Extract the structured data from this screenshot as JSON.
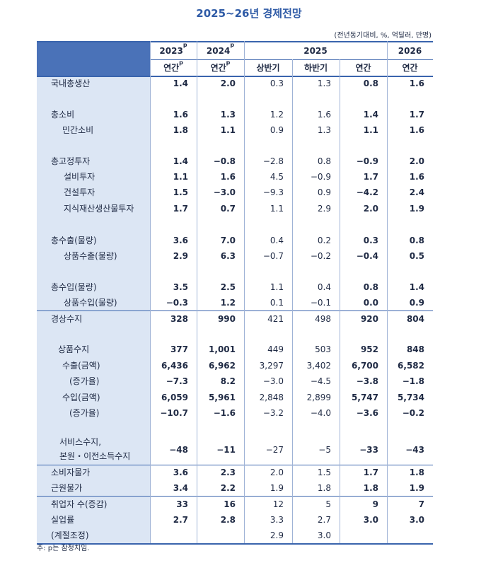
{
  "title": "2025~26년 경제전망",
  "unit_note": "(전년동기대비, %, 억달러, 만명)",
  "header": {
    "row1": [
      {
        "text": "2023",
        "sup": "p"
      },
      {
        "text": "2024",
        "sup": "p"
      },
      {
        "text": "2025"
      },
      {
        "text": "2026"
      }
    ],
    "row2": [
      {
        "text": "연간",
        "sup": "p"
      },
      {
        "text": "연간",
        "sup": "p"
      },
      {
        "text": "상반기"
      },
      {
        "text": "하반기"
      },
      {
        "text": "연간"
      },
      {
        "text": "연간"
      }
    ]
  },
  "table": {
    "rows": [
      {
        "label": "국내총생산",
        "cells": [
          "1.4",
          "2.0",
          "0.3",
          "1.3",
          "0.8",
          "1.6"
        ]
      },
      {
        "label": "총소비",
        "cells": [
          "1.6",
          "1.3",
          "1.2",
          "1.6",
          "1.4",
          "1.7"
        ]
      },
      {
        "label": "민간소비",
        "cells": [
          "1.8",
          "1.1",
          "0.9",
          "1.3",
          "1.1",
          "1.6"
        ]
      },
      {
        "label": "총고정투자",
        "cells": [
          "1.4",
          "−0.8",
          "−2.8",
          "0.8",
          "−0.9",
          "2.0"
        ]
      },
      {
        "label": "설비투자",
        "cells": [
          "1.1",
          "1.6",
          "4.5",
          "−0.9",
          "1.7",
          "1.6"
        ]
      },
      {
        "label": "건설투자",
        "cells": [
          "1.5",
          "−3.0",
          "−9.3",
          "0.9",
          "−4.2",
          "2.4"
        ]
      },
      {
        "label": "지식재산생산물투자",
        "cells": [
          "1.7",
          "0.7",
          "1.1",
          "2.9",
          "2.0",
          "1.9"
        ]
      },
      {
        "label": "총수출(물량)",
        "cells": [
          "3.6",
          "7.0",
          "0.4",
          "0.2",
          "0.3",
          "0.8"
        ]
      },
      {
        "label": "상품수출(물량)",
        "cells": [
          "2.9",
          "6.3",
          "−0.7",
          "−0.2",
          "−0.4",
          "0.5"
        ]
      },
      {
        "label": "총수입(물량)",
        "cells": [
          "3.5",
          "2.5",
          "1.1",
          "0.4",
          "0.8",
          "1.4"
        ]
      },
      {
        "label": "상품수입(물량)",
        "cells": [
          "−0.3",
          "1.2",
          "0.1",
          "−0.1",
          "0.0",
          "0.9"
        ]
      },
      {
        "label": "경상수지",
        "cells": [
          "328",
          "990",
          "421",
          "498",
          "920",
          "804"
        ]
      },
      {
        "label": "상품수지",
        "cells": [
          "377",
          "1,001",
          "449",
          "503",
          "952",
          "848"
        ]
      },
      {
        "label": "수출(금액)",
        "cells": [
          "6,436",
          "6,962",
          "3,297",
          "3,402",
          "6,700",
          "6,582"
        ]
      },
      {
        "label": "(증가율)",
        "cells": [
          "−7.3",
          "8.2",
          "−3.0",
          "−4.5",
          "−3.8",
          "−1.8"
        ]
      },
      {
        "label": "수입(금액)",
        "cells": [
          "6,059",
          "5,961",
          "2,848",
          "2,899",
          "5,747",
          "5,734"
        ]
      },
      {
        "label": "(증가율)",
        "cells": [
          "−10.7",
          "−1.6",
          "−3.2",
          "−4.0",
          "−3.6",
          "−0.2"
        ]
      },
      {
        "label": [
          "서비스수지,",
          "본원・이전소득수지"
        ],
        "cells": [
          "−48",
          "−11",
          "−27",
          "−5",
          "−33",
          "−43"
        ]
      },
      {
        "label": "소비자물가",
        "cells": [
          "3.6",
          "2.3",
          "2.0",
          "1.5",
          "1.7",
          "1.8"
        ]
      },
      {
        "label": "근원물가",
        "cells": [
          "3.4",
          "2.2",
          "1.9",
          "1.8",
          "1.8",
          "1.9"
        ]
      },
      {
        "label": "취업자 수(증감)",
        "cells": [
          "33",
          "16",
          "12",
          "5",
          "9",
          "7"
        ]
      },
      {
        "label": "실업률",
        "cells": [
          "2.7",
          "2.8",
          "3.3",
          "2.7",
          "3.0",
          "3.0"
        ]
      },
      {
        "label": "(계절조정)",
        "cells": [
          null,
          null,
          "2.9",
          "3.0",
          null,
          null
        ]
      }
    ]
  },
  "footnote": "주: p는 잠정치임."
}
